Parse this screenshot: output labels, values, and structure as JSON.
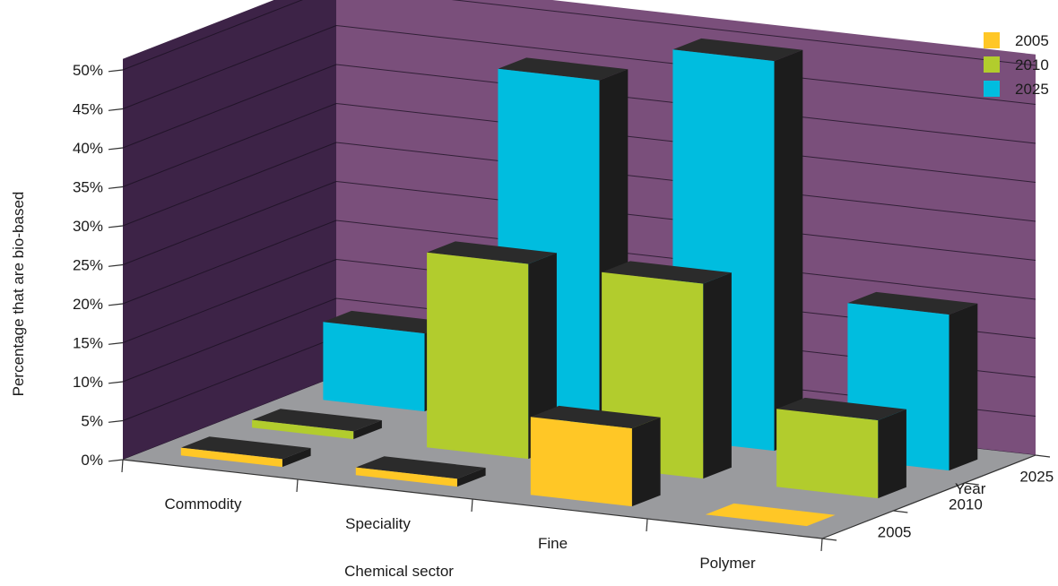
{
  "chart_data": {
    "type": "bar",
    "subtype": "3d-clustered-bar",
    "title": "",
    "xlabel": "Chemical sector",
    "ylabel": "Percentage that are bio-based",
    "zlabel": "Year",
    "categories": [
      "Commodity",
      "Speciality",
      "Fine",
      "Polymer"
    ],
    "series": [
      {
        "name": "2005",
        "values": [
          1,
          1,
          10,
          0
        ],
        "color": "#ffc726"
      },
      {
        "name": "2010",
        "values": [
          1,
          25,
          25,
          10
        ],
        "color": "#b2cc2d"
      },
      {
        "name": "2025",
        "values": [
          10,
          45,
          50,
          20
        ],
        "color": "#00bddf"
      }
    ],
    "ylim": [
      0,
      50
    ],
    "yticks": [
      "0%",
      "5%",
      "10%",
      "15%",
      "20%",
      "25%",
      "30%",
      "35%",
      "40%",
      "45%",
      "50%"
    ],
    "depth_ticks": [
      "2005",
      "2010",
      "2025"
    ],
    "grid": true,
    "legend_position": "top-right",
    "colors": {
      "back_wall": "#7a4f7b",
      "side_wall": "#3d2347",
      "floor": "#9a9b9e",
      "bar_side": "#1c1c1c",
      "bar_top": "#2b2b2b"
    }
  }
}
